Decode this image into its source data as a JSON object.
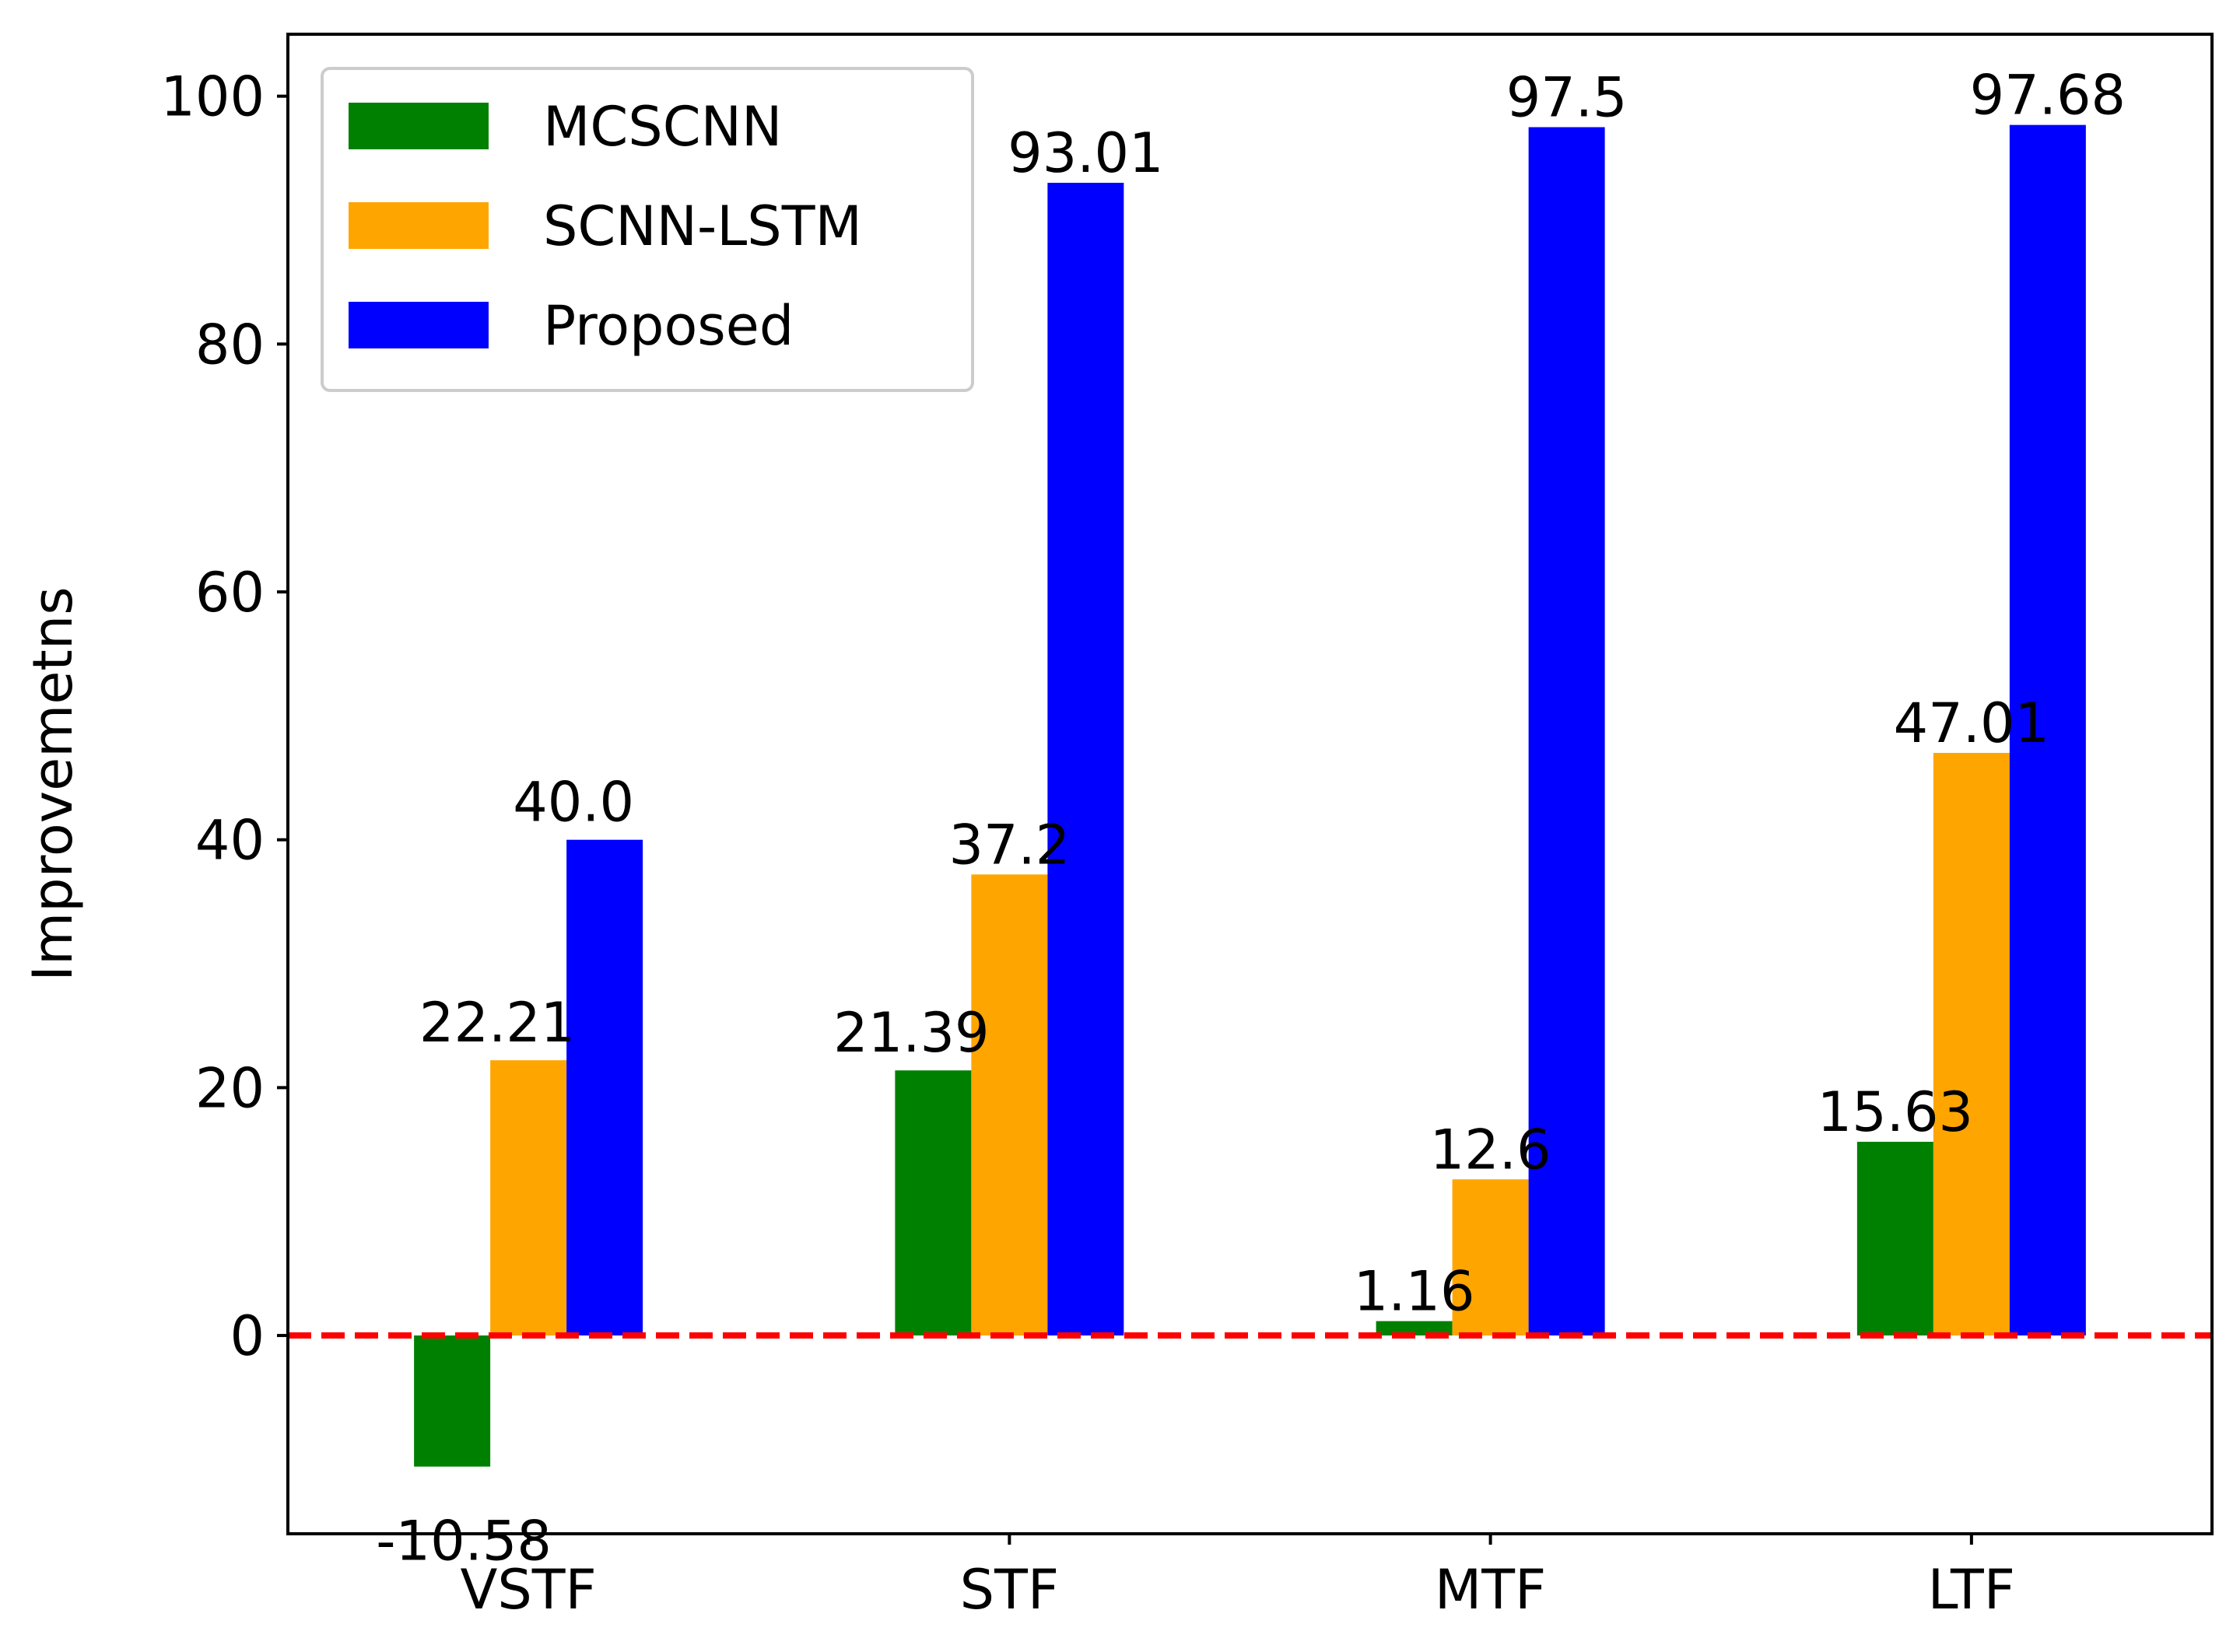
{
  "chart_data": {
    "type": "bar",
    "title": "",
    "xlabel": "",
    "ylabel": "Improvemetns",
    "ylim": [
      -16,
      105
    ],
    "yticks": [
      0,
      20,
      40,
      60,
      80,
      100
    ],
    "categories": [
      "VSTF",
      "STF",
      "MTF",
      "LTF"
    ],
    "series": [
      {
        "name": "MCSCNN",
        "color": "#008000",
        "values": [
          -10.58,
          21.39,
          1.16,
          15.63
        ],
        "labels": [
          "-10.58",
          "21.39",
          "1.16",
          "15.63"
        ]
      },
      {
        "name": "SCNN-LSTM",
        "color": "#FFA500",
        "values": [
          22.21,
          37.2,
          12.6,
          47.01
        ],
        "labels": [
          "22.21",
          "37.2",
          "12.6",
          "47.01"
        ]
      },
      {
        "name": "Proposed",
        "color": "#0000FF",
        "values": [
          40.0,
          93.01,
          97.5,
          97.68
        ],
        "labels": [
          "40.0",
          "93.01",
          "97.5",
          "97.68"
        ]
      }
    ],
    "reference_line": {
      "y": 0,
      "color": "#FF0000",
      "style": "dashed"
    },
    "legend_position": "top-left",
    "grid": false
  }
}
